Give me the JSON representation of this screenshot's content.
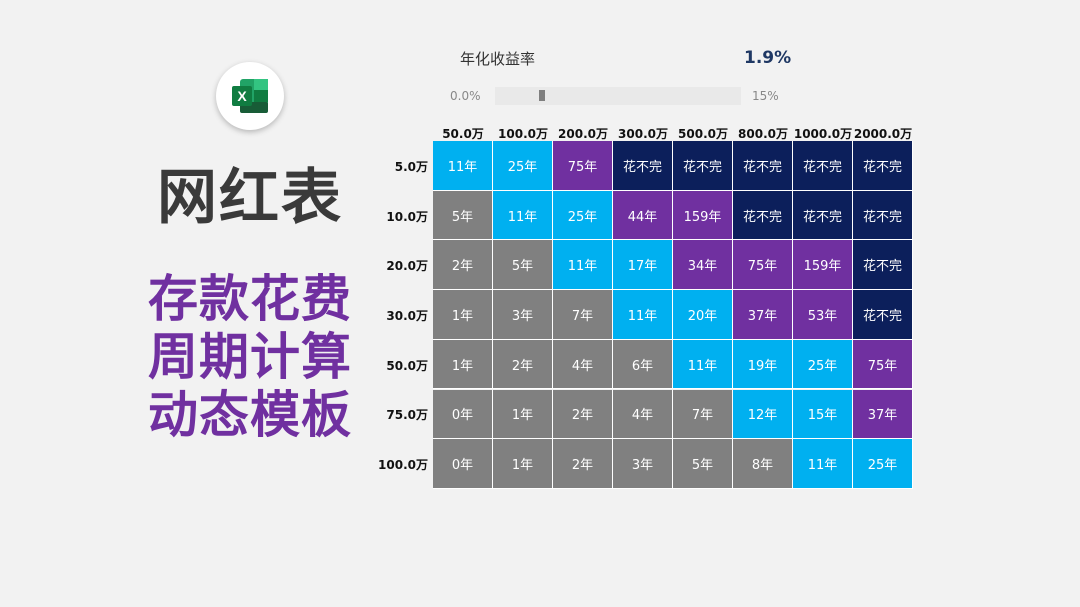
{
  "title": "网红表",
  "subtitle_lines": [
    "存款花费",
    "周期计算",
    "动态模板"
  ],
  "logo": {
    "icon": "excel-icon",
    "letter": "X",
    "colors": [
      "#21a366",
      "#107c41",
      "#33c481",
      "#185c37"
    ]
  },
  "rate": {
    "label": "年化收益率",
    "value": "1.9%"
  },
  "slider": {
    "min_label": "0.0%",
    "max_label": "15%",
    "min": 0,
    "max": 15,
    "value": 1.9
  },
  "column_headers": [
    "50.0万",
    "100.0万",
    "200.0万",
    "300.0万",
    "500.0万",
    "800.0万",
    "1000.0万",
    "2000.0万"
  ],
  "row_headers": [
    "5.0万",
    "10.0万",
    "20.0万",
    "30.0万",
    "50.0万",
    "75.0万",
    "100.0万"
  ],
  "cells": [
    [
      "11年",
      "25年",
      "75年",
      "花不完",
      "花不完",
      "花不完",
      "花不完",
      "花不完"
    ],
    [
      "5年",
      "11年",
      "25年",
      "44年",
      "159年",
      "花不完",
      "花不完",
      "花不完"
    ],
    [
      "2年",
      "5年",
      "11年",
      "17年",
      "34年",
      "75年",
      "159年",
      "花不完"
    ],
    [
      "1年",
      "3年",
      "7年",
      "11年",
      "20年",
      "37年",
      "53年",
      "花不完"
    ],
    [
      "1年",
      "2年",
      "4年",
      "6年",
      "11年",
      "19年",
      "25年",
      "75年"
    ],
    [
      "0年",
      "1年",
      "2年",
      "4年",
      "7年",
      "12年",
      "15年",
      "37年"
    ],
    [
      "0年",
      "1年",
      "2年",
      "3年",
      "5年",
      "8年",
      "11年",
      "25年"
    ]
  ],
  "cell_colors": [
    [
      "cyan",
      "cyan",
      "purple",
      "navy",
      "navy",
      "navy",
      "navy",
      "navy"
    ],
    [
      "grey",
      "cyan",
      "cyan",
      "purple",
      "purple",
      "navy",
      "navy",
      "navy"
    ],
    [
      "grey",
      "grey",
      "cyan",
      "cyan",
      "purple",
      "purple",
      "purple",
      "navy"
    ],
    [
      "grey",
      "grey",
      "grey",
      "cyan",
      "cyan",
      "purple",
      "purple",
      "navy"
    ],
    [
      "grey",
      "grey",
      "grey",
      "grey",
      "cyan",
      "cyan",
      "cyan",
      "purple"
    ],
    [
      "grey",
      "grey",
      "grey",
      "grey",
      "grey",
      "cyan",
      "cyan",
      "purple"
    ],
    [
      "grey",
      "grey",
      "grey",
      "grey",
      "grey",
      "grey",
      "cyan",
      "cyan"
    ]
  ],
  "palette": {
    "grey": "#808080",
    "cyan": "#00b0f0",
    "purple": "#7030a0",
    "navy": "#0c1f5b"
  }
}
